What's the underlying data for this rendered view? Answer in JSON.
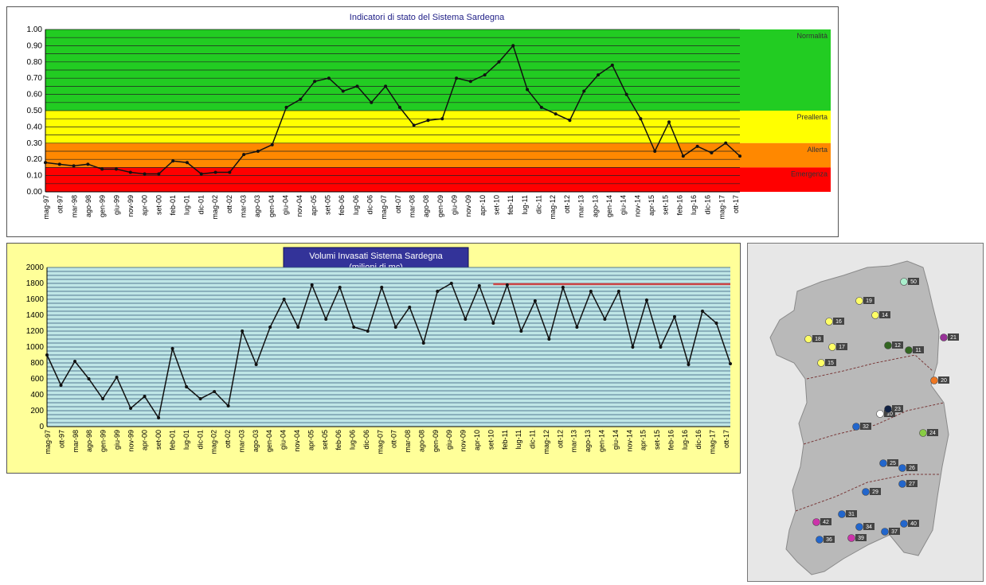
{
  "chart_data": [
    {
      "type": "line",
      "title": "Indicatori di stato del Sistema Sardegna",
      "ylim": [
        0,
        1
      ],
      "yticks": [
        "0.00",
        "0.10",
        "0.20",
        "0.30",
        "0.40",
        "0.50",
        "0.60",
        "0.70",
        "0.80",
        "0.90",
        "1.00"
      ],
      "grid": true,
      "categories": [
        "mag-97",
        "ott-97",
        "mar-98",
        "ago-98",
        "gen-99",
        "giu-99",
        "nov-99",
        "apr-00",
        "set-00",
        "feb-01",
        "lug-01",
        "dic-01",
        "mag-02",
        "ott-02",
        "mar-03",
        "ago-03",
        "gen-04",
        "giu-04",
        "nov-04",
        "apr-05",
        "set-05",
        "feb-06",
        "lug-06",
        "dic-06",
        "mag-07",
        "ott-07",
        "mar-08",
        "ago-08",
        "gen-09",
        "giu-09",
        "nov-09",
        "apr-10",
        "set-10",
        "feb-11",
        "lug-11",
        "dic-11",
        "mag-12",
        "ott-12",
        "mar-13",
        "ago-13",
        "gen-14",
        "giu-14",
        "nov-14",
        "apr-15",
        "set-15",
        "feb-16",
        "lug-16",
        "dic-16",
        "mag-17",
        "ott-17"
      ],
      "bands": [
        {
          "label": "Normalità",
          "from": 0.5,
          "to": 1.0,
          "color": "#22cc22"
        },
        {
          "label": "Preallerta",
          "from": 0.3,
          "to": 0.5,
          "color": "#ffff00"
        },
        {
          "label": "Allerta",
          "from": 0.15,
          "to": 0.3,
          "color": "#ff8800"
        },
        {
          "label": "Emergenza",
          "from": 0.0,
          "to": 0.15,
          "color": "#ff0000"
        }
      ],
      "series": [
        {
          "values": [
            0.18,
            0.17,
            0.16,
            0.17,
            0.14,
            0.14,
            0.12,
            0.11,
            0.11,
            0.19,
            0.18,
            0.11,
            0.12,
            0.12,
            0.23,
            0.25,
            0.29,
            0.52,
            0.57,
            0.68,
            0.7,
            0.62,
            0.65,
            0.55,
            0.65,
            0.52,
            0.41,
            0.44,
            0.45,
            0.7,
            0.68,
            0.72,
            0.8,
            0.9,
            0.63,
            0.52,
            0.48,
            0.44,
            0.62,
            0.72,
            0.78,
            0.6,
            0.45,
            0.25,
            0.43,
            0.22,
            0.28,
            0.24,
            0.3,
            0.22
          ],
          "color": "#111111"
        }
      ]
    },
    {
      "type": "line",
      "title": "Volumi Invasati Sistema Sardegna",
      "subtitle": "(milioni di mc)",
      "ylim": [
        0,
        2000
      ],
      "yticks": [
        "0",
        "200",
        "400",
        "600",
        "800",
        "1000",
        "1200",
        "1400",
        "1600",
        "1800",
        "2000"
      ],
      "grid": true,
      "categories": [
        "mag-97",
        "ott-97",
        "mar-98",
        "ago-98",
        "gen-99",
        "giu-99",
        "nov-99",
        "apr-00",
        "set-00",
        "feb-01",
        "lug-01",
        "dic-01",
        "mag-02",
        "ott-02",
        "mar-03",
        "ago-03",
        "gen-04",
        "giu-04",
        "nov-04",
        "apr-05",
        "set-05",
        "feb-06",
        "lug-06",
        "dic-06",
        "mag-07",
        "ott-07",
        "mar-08",
        "ago-08",
        "gen-09",
        "giu-09",
        "nov-09",
        "apr-10",
        "set-10",
        "feb-11",
        "lug-11",
        "dic-11",
        "mag-12",
        "ott-12",
        "mar-13",
        "ago-13",
        "gen-14",
        "giu-14",
        "nov-14",
        "apr-15",
        "set-15",
        "feb-16",
        "lug-16",
        "dic-16",
        "mag-17",
        "ott-17"
      ],
      "reference_line": {
        "value": 1790,
        "from_index": 32,
        "color": "#cc4444"
      },
      "series": [
        {
          "values": [
            900,
            520,
            820,
            600,
            350,
            620,
            230,
            380,
            110,
            980,
            500,
            350,
            440,
            260,
            1200,
            780,
            1250,
            1600,
            1250,
            1780,
            1350,
            1750,
            1250,
            1200,
            1750,
            1250,
            1500,
            1050,
            1700,
            1800,
            1350,
            1770,
            1300,
            1780,
            1200,
            1580,
            1100,
            1750,
            1250,
            1700,
            1350,
            1700,
            1000,
            1590,
            1000,
            1380,
            780,
            1450,
            1300,
            790
          ],
          "color": "#111111"
        }
      ]
    }
  ],
  "map": {
    "background": "#e7e7e7",
    "markers": [
      {
        "label": "50",
        "color": "#aaeecc"
      },
      {
        "label": "19",
        "color": "#ffff66"
      },
      {
        "label": "14",
        "color": "#ffff66"
      },
      {
        "label": "18",
        "color": "#ffff66"
      },
      {
        "label": "16",
        "color": "#ffff66"
      },
      {
        "label": "17",
        "color": "#ffff66"
      },
      {
        "label": "15",
        "color": "#ffff66"
      },
      {
        "label": "12",
        "color": "#336622"
      },
      {
        "label": "11",
        "color": "#336622"
      },
      {
        "label": "21",
        "color": "#993399"
      },
      {
        "label": "20",
        "color": "#ee7722"
      },
      {
        "label": "10",
        "color": "#ffffff"
      },
      {
        "label": "23",
        "color": "#112244"
      },
      {
        "label": "24",
        "color": "#88cc44"
      },
      {
        "label": "32",
        "color": "#2266cc"
      },
      {
        "label": "25",
        "color": "#2266cc"
      },
      {
        "label": "26",
        "color": "#2266cc"
      },
      {
        "label": "27",
        "color": "#2266cc"
      },
      {
        "label": "29",
        "color": "#2266cc"
      },
      {
        "label": "31",
        "color": "#2266cc"
      },
      {
        "label": "36",
        "color": "#2266cc"
      },
      {
        "label": "34",
        "color": "#2266cc"
      },
      {
        "label": "40",
        "color": "#2266cc"
      },
      {
        "label": "37",
        "color": "#2266cc"
      },
      {
        "label": "42",
        "color": "#cc33aa"
      },
      {
        "label": "39",
        "color": "#cc33aa"
      }
    ]
  }
}
